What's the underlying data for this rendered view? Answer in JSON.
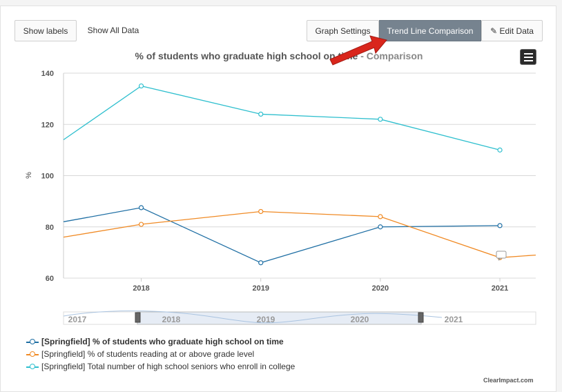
{
  "toolbar": {
    "show_labels": "Show labels",
    "show_all_data": "Show All Data",
    "graph_settings": "Graph Settings",
    "trend_comparison": "Trend Line Comparison",
    "edit_data": "Edit Data"
  },
  "icons": {
    "edit": "pencil-icon",
    "menu": "hamburger-menu-icon",
    "annotation": "arrow-pointer-icon"
  },
  "chart_title": {
    "main": "% of students who graduate high school on time",
    "suffix": " - Comparison"
  },
  "credit": "ClearImpact.com",
  "colors": {
    "blue": "#1f6fa4",
    "orange": "#f08a24",
    "cyan": "#2ebfce",
    "accent_button": "#76838f",
    "arrow": "#d9261c"
  },
  "chart_data": {
    "type": "line",
    "title": "% of students who graduate high school on time - Comparison",
    "xlabel": "",
    "ylabel": "%",
    "x": [
      2017.35,
      2018,
      2019,
      2020,
      2021,
      2021.3
    ],
    "xticks": [
      "2018",
      "2019",
      "2020",
      "2021"
    ],
    "xlim": [
      2017.35,
      2021.3
    ],
    "ylim": [
      60,
      140
    ],
    "yticks": [
      60,
      80,
      100,
      120,
      140
    ],
    "grid": true,
    "series": [
      {
        "name": "[Springfield] % of students who graduate high school on time",
        "color": "#1f6fa4",
        "values": [
          82,
          87.5,
          66,
          80,
          80.5,
          null
        ]
      },
      {
        "name": "[Springfield] % of students reading at or above grade level",
        "color": "#f08a24",
        "values": [
          76,
          81,
          86,
          84,
          68,
          69
        ]
      },
      {
        "name": "[Springfield] Total number of high school seniors who enroll in college",
        "color": "#2ebfce",
        "values": [
          114,
          135,
          124,
          122,
          110,
          null
        ]
      }
    ],
    "navigator": {
      "labels": [
        "2017",
        "2018",
        "2019",
        "2020",
        "2021"
      ]
    },
    "legend_position": "bottom-left"
  }
}
